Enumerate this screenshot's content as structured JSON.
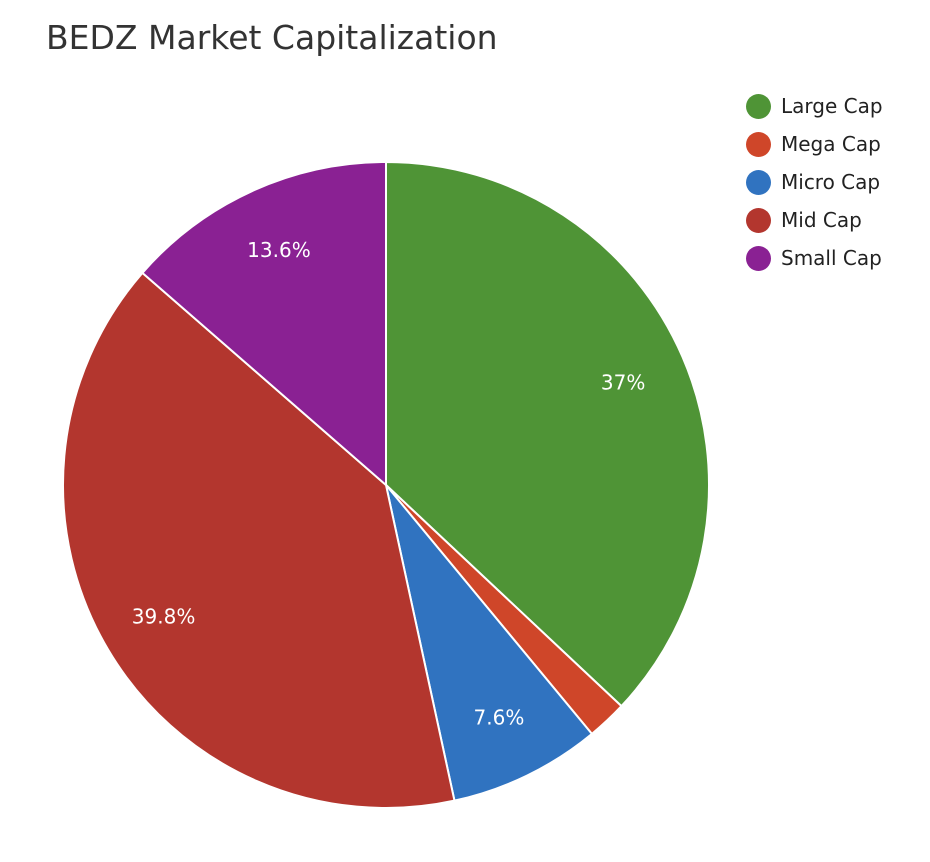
{
  "chart_data": {
    "type": "pie",
    "title": "BEDZ Market Capitalization",
    "legend_position": "top-right",
    "start_angle_deg": 0,
    "direction": "clockwise",
    "slices": [
      {
        "name": "Large Cap",
        "value": 37.0,
        "label": "37%",
        "color": "#4f9436",
        "show_label": true
      },
      {
        "name": "Mega Cap",
        "value": 2.0,
        "label": "",
        "color": "#cf4629",
        "show_label": false
      },
      {
        "name": "Micro Cap",
        "value": 7.6,
        "label": "7.6%",
        "color": "#3073c0",
        "show_label": true
      },
      {
        "name": "Mid Cap",
        "value": 39.8,
        "label": "39.8%",
        "color": "#b3362e",
        "show_label": true
      },
      {
        "name": "Small Cap",
        "value": 13.6,
        "label": "13.6%",
        "color": "#8a2193",
        "show_label": true
      }
    ]
  }
}
